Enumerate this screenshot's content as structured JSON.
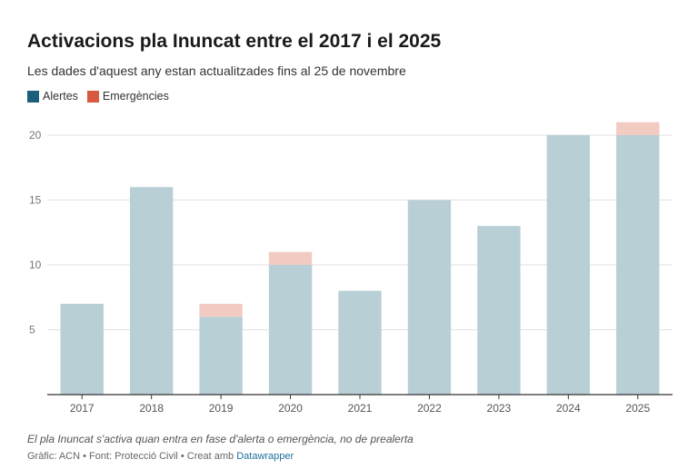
{
  "title": "Activacions pla Inuncat entre el 2017 i el 2025",
  "subtitle": "Les dades d'aquest any estan actualitzades fins al 25 de novembre",
  "note": "El pla Inuncat s'activa quan entra en fase d'alerta o emergència, no de prealerta",
  "credits": {
    "prefix": "Gràfic: ACN • Font: Protecció Civil • Creat amb ",
    "link": "Datawrapper"
  },
  "colors": {
    "alertes": "#b9cfd6",
    "emergencies": "#f2cbc2",
    "legend_alertes": "#1b5f7a",
    "legend_emergencies": "#d8593d",
    "grid": "#e2e2e2",
    "axis": "#333333"
  },
  "chart_data": {
    "type": "bar",
    "stacked": true,
    "categories": [
      "2017",
      "2018",
      "2019",
      "2020",
      "2021",
      "2022",
      "2023",
      "2024",
      "2025"
    ],
    "series": [
      {
        "name": "Alertes",
        "values": [
          7,
          16,
          6,
          10,
          8,
          15,
          13,
          20,
          20
        ]
      },
      {
        "name": "Emergències",
        "values": [
          0,
          0,
          1,
          1,
          0,
          0,
          0,
          0,
          1
        ]
      }
    ],
    "yticks": [
      "5",
      "10",
      "15",
      "20"
    ],
    "ylim": [
      0,
      20
    ],
    "grid": true,
    "legend": "top-left"
  }
}
